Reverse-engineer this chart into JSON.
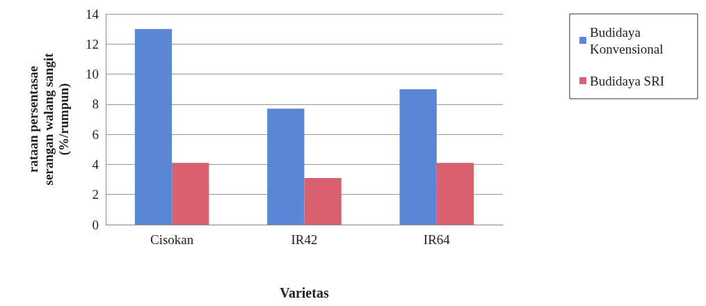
{
  "chart_data": {
    "type": "bar",
    "xlabel": "Varietas",
    "ylabel": "rataan persentasae\nserangan walang sangit\n(%/rumpun)",
    "categories": [
      "Cisokan",
      "IR42",
      "IR64"
    ],
    "series": [
      {
        "name": "Budidaya Konvensional",
        "color": "#5b86d6",
        "values": [
          13.0,
          7.7,
          9.0
        ]
      },
      {
        "name": "Budidaya SRI",
        "color": "#d9606e",
        "values": [
          4.1,
          3.1,
          4.1
        ]
      }
    ],
    "ylim": [
      0,
      14
    ],
    "yticks": [
      0,
      2,
      4,
      6,
      8,
      10,
      12,
      14
    ],
    "grid": "y",
    "legend": "right"
  }
}
